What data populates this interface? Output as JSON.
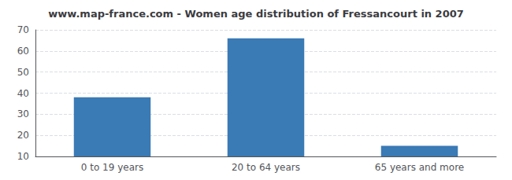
{
  "chart_data": {
    "type": "bar",
    "title": "www.map-france.com - Women age distribution of Fressancourt in 2007",
    "categories": [
      "0 to 19 years",
      "20 to 64 years",
      "65 years and more"
    ],
    "values": [
      38,
      66,
      15
    ],
    "color": "#3a7ab5",
    "ylim": [
      10,
      70
    ],
    "yticks": [
      10,
      20,
      30,
      40,
      50,
      60,
      70
    ],
    "grid": true
  }
}
